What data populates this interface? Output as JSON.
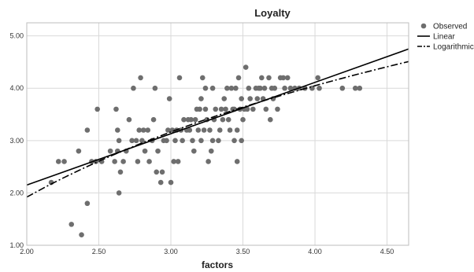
{
  "chart_data": {
    "type": "scatter",
    "title": "Loyalty",
    "xlabel": "factors",
    "ylabel": "",
    "xlim": [
      2.0,
      4.65
    ],
    "ylim": [
      1.0,
      5.25
    ],
    "xticks": [
      "2.00",
      "2.50",
      "3.00",
      "3.50",
      "4.00",
      "4.50"
    ],
    "yticks": [
      "1.00",
      "2.00",
      "3.00",
      "4.00",
      "5.00"
    ],
    "grid": true,
    "legend": "top-right",
    "colors": {
      "observed": "#6e6e6e",
      "line": "#000000",
      "grid": "#d9d9d9"
    },
    "series": [
      {
        "name": "Observed",
        "kind": "points",
        "points": [
          [
            2.17,
            2.2
          ],
          [
            2.22,
            2.6
          ],
          [
            2.26,
            2.6
          ],
          [
            2.31,
            1.4
          ],
          [
            2.36,
            2.8
          ],
          [
            2.38,
            1.2
          ],
          [
            2.42,
            1.8
          ],
          [
            2.42,
            3.2
          ],
          [
            2.45,
            2.6
          ],
          [
            2.48,
            2.6
          ],
          [
            2.49,
            3.6
          ],
          [
            2.52,
            2.6
          ],
          [
            2.58,
            2.8
          ],
          [
            2.61,
            2.6
          ],
          [
            2.62,
            3.6
          ],
          [
            2.63,
            2.8
          ],
          [
            2.63,
            3.2
          ],
          [
            2.64,
            3.0
          ],
          [
            2.64,
            2.0
          ],
          [
            2.65,
            2.4
          ],
          [
            2.67,
            2.6
          ],
          [
            2.69,
            2.8
          ],
          [
            2.71,
            3.4
          ],
          [
            2.73,
            3.0
          ],
          [
            2.74,
            4.0
          ],
          [
            2.76,
            3.0
          ],
          [
            2.77,
            2.6
          ],
          [
            2.78,
            3.2
          ],
          [
            2.79,
            4.2
          ],
          [
            2.8,
            3.0
          ],
          [
            2.81,
            3.2
          ],
          [
            2.82,
            2.8
          ],
          [
            2.84,
            3.2
          ],
          [
            2.85,
            2.6
          ],
          [
            2.87,
            3.0
          ],
          [
            2.88,
            3.4
          ],
          [
            2.89,
            4.0
          ],
          [
            2.9,
            2.4
          ],
          [
            2.91,
            2.8
          ],
          [
            2.93,
            2.2
          ],
          [
            2.94,
            2.4
          ],
          [
            2.95,
            3.0
          ],
          [
            2.97,
            3.0
          ],
          [
            2.98,
            3.2
          ],
          [
            2.99,
            3.8
          ],
          [
            3.0,
            2.2
          ],
          [
            3.01,
            3.2
          ],
          [
            3.02,
            2.6
          ],
          [
            3.03,
            3.0
          ],
          [
            3.04,
            3.2
          ],
          [
            3.05,
            2.6
          ],
          [
            3.06,
            4.2
          ],
          [
            3.07,
            3.2
          ],
          [
            3.08,
            3.0
          ],
          [
            3.09,
            3.4
          ],
          [
            3.11,
            3.2
          ],
          [
            3.12,
            3.4
          ],
          [
            3.13,
            3.2
          ],
          [
            3.14,
            3.4
          ],
          [
            3.15,
            3.0
          ],
          [
            3.16,
            2.8
          ],
          [
            3.17,
            3.4
          ],
          [
            3.18,
            3.6
          ],
          [
            3.19,
            3.2
          ],
          [
            3.2,
            3.6
          ],
          [
            3.21,
            3.0
          ],
          [
            3.21,
            3.8
          ],
          [
            3.22,
            4.2
          ],
          [
            3.23,
            3.2
          ],
          [
            3.24,
            3.6
          ],
          [
            3.24,
            4.0
          ],
          [
            3.25,
            3.4
          ],
          [
            3.26,
            2.6
          ],
          [
            3.27,
            3.2
          ],
          [
            3.28,
            2.8
          ],
          [
            3.29,
            3.0
          ],
          [
            3.29,
            4.0
          ],
          [
            3.3,
            3.4
          ],
          [
            3.31,
            3.6
          ],
          [
            3.33,
            3.0
          ],
          [
            3.34,
            3.2
          ],
          [
            3.35,
            3.6
          ],
          [
            3.36,
            3.4
          ],
          [
            3.37,
            3.8
          ],
          [
            3.38,
            3.6
          ],
          [
            3.39,
            4.0
          ],
          [
            3.4,
            3.4
          ],
          [
            3.41,
            3.2
          ],
          [
            3.42,
            4.0
          ],
          [
            3.43,
            3.6
          ],
          [
            3.44,
            3.0
          ],
          [
            3.44,
            3.6
          ],
          [
            3.45,
            4.0
          ],
          [
            3.46,
            2.6
          ],
          [
            3.46,
            3.2
          ],
          [
            3.47,
            4.2
          ],
          [
            3.48,
            3.6
          ],
          [
            3.49,
            3.0
          ],
          [
            3.49,
            3.8
          ],
          [
            3.5,
            3.4
          ],
          [
            3.51,
            3.6
          ],
          [
            3.52,
            4.4
          ],
          [
            3.53,
            3.6
          ],
          [
            3.54,
            4.0
          ],
          [
            3.55,
            3.8
          ],
          [
            3.57,
            3.6
          ],
          [
            3.59,
            4.0
          ],
          [
            3.6,
            3.8
          ],
          [
            3.61,
            4.0
          ],
          [
            3.62,
            4.0
          ],
          [
            3.63,
            4.2
          ],
          [
            3.64,
            3.8
          ],
          [
            3.65,
            4.0
          ],
          [
            3.66,
            3.6
          ],
          [
            3.68,
            4.2
          ],
          [
            3.69,
            3.4
          ],
          [
            3.7,
            4.0
          ],
          [
            3.71,
            3.8
          ],
          [
            3.72,
            4.0
          ],
          [
            3.74,
            3.6
          ],
          [
            3.76,
            4.2
          ],
          [
            3.78,
            4.2
          ],
          [
            3.79,
            4.0
          ],
          [
            3.81,
            4.2
          ],
          [
            3.83,
            4.0
          ],
          [
            3.86,
            4.0
          ],
          [
            3.89,
            4.0
          ],
          [
            3.93,
            4.0
          ],
          [
            3.98,
            4.0
          ],
          [
            4.02,
            4.2
          ],
          [
            4.03,
            4.0
          ],
          [
            4.19,
            4.0
          ],
          [
            4.28,
            4.0
          ],
          [
            4.31,
            4.0
          ]
        ]
      },
      {
        "name": "Linear",
        "kind": "linear",
        "x": [
          2.0,
          4.65
        ],
        "y": [
          2.15,
          4.75
        ]
      },
      {
        "name": "Logarithmic",
        "kind": "logarithmic",
        "x": [
          2.0,
          4.65
        ],
        "y": [
          1.92,
          4.51
        ]
      }
    ]
  }
}
